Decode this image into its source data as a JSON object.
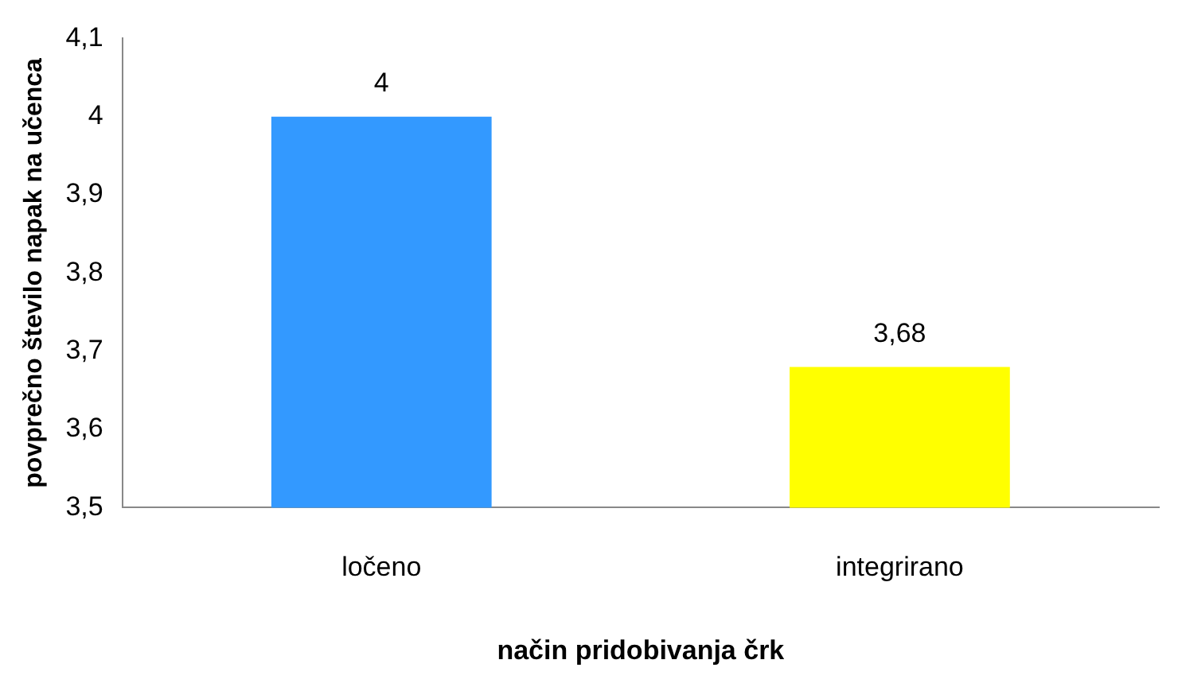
{
  "chart_data": {
    "type": "bar",
    "xlabel": "način pridobivanja črk",
    "ylabel": "povprečno število napak na učenca",
    "categories": [
      "ločeno",
      "integrirano"
    ],
    "values": [
      4,
      3.68
    ],
    "colors": [
      "#3399ff",
      "#ffff00"
    ],
    "value_labels": [
      "4",
      "3,68"
    ],
    "ylim": [
      3.5,
      4.1
    ],
    "yticks": [
      {
        "value": 3.5,
        "label": "3,5"
      },
      {
        "value": 3.6,
        "label": "3,6"
      },
      {
        "value": 3.7,
        "label": "3,7"
      },
      {
        "value": 3.8,
        "label": "3,8"
      },
      {
        "value": 3.9,
        "label": "3,9"
      },
      {
        "value": 4,
        "label": "4"
      },
      {
        "value": 4.1,
        "label": "4,1"
      }
    ],
    "grid": false,
    "legend": false
  }
}
